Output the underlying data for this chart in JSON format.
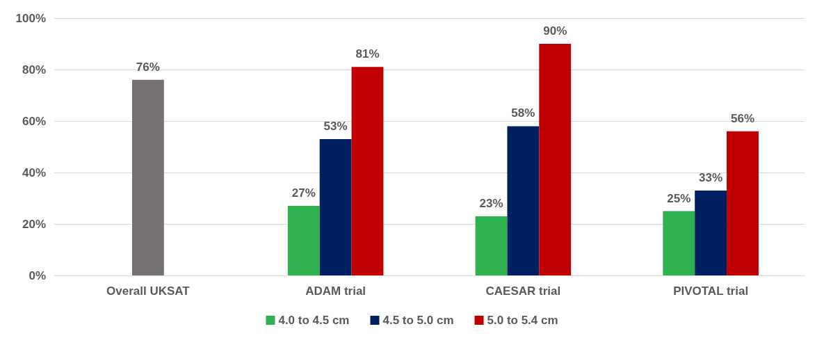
{
  "chart_data": {
    "type": "bar",
    "categories": [
      "Overall UKSAT",
      "ADAM trial",
      "CAESAR trial",
      "PIVOTAL trial"
    ],
    "series": [
      {
        "name": "4.0 to 4.5 cm",
        "color": "#2db24f",
        "values": [
          null,
          27,
          23,
          25
        ],
        "value_labels": [
          null,
          "27%",
          "23%",
          "25%"
        ]
      },
      {
        "name": "4.5 to 5.0 cm",
        "color": "#002060",
        "values": [
          null,
          53,
          58,
          33
        ],
        "value_labels": [
          null,
          "53%",
          "58%",
          "33%"
        ]
      },
      {
        "name": "5.0 to 5.4 cm",
        "color": "#c00000",
        "values": [
          null,
          81,
          90,
          56
        ],
        "value_labels": [
          null,
          "81%",
          "90%",
          "56%"
        ]
      },
      {
        "color": "#767171",
        "values": [
          76,
          null,
          null,
          null
        ],
        "value_labels": [
          "76%",
          null,
          null,
          null
        ]
      }
    ],
    "ylim": [
      0,
      100
    ],
    "yticks": [
      {
        "value": 0,
        "label": "0%"
      },
      {
        "value": 20,
        "label": "20%"
      },
      {
        "value": 40,
        "label": "40%"
      },
      {
        "value": 60,
        "label": "60%"
      },
      {
        "value": 80,
        "label": "80%"
      },
      {
        "value": 100,
        "label": "100%"
      }
    ],
    "grid": "y",
    "legend": "bottom"
  }
}
